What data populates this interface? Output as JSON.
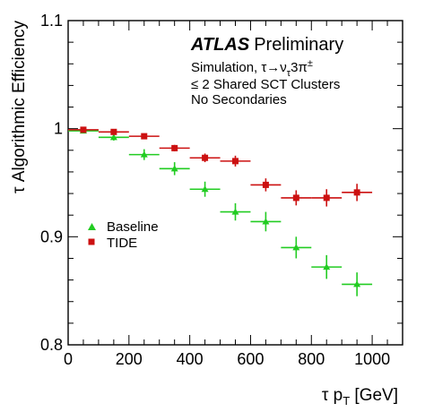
{
  "chart_data": {
    "type": "scatter",
    "xlabel": "τ  p_T [GeV]",
    "ylabel": "τ  Algorithmic Efficiency",
    "xlim": [
      0,
      1100
    ],
    "ylim": [
      0.8,
      1.1
    ],
    "x_ticks": [
      "0",
      "200",
      "400",
      "600",
      "800",
      "1000"
    ],
    "y_ticks": [
      "0.8",
      "0.9",
      "1",
      "1.1"
    ],
    "grid": false,
    "legend_position": "left-middle",
    "annotations": {
      "experiment": "ATLAS",
      "status": "Preliminary",
      "line1": "Simulation, τ→ν",
      "line1_sub": "τ",
      "line1_tail": "3π",
      "line1_sup": "±",
      "line2": "≤ 2 Shared SCT Clusters",
      "line3": "No Secondaries"
    },
    "series": [
      {
        "name": "Baseline",
        "color": "#22cc22",
        "marker": "triangle",
        "points": [
          {
            "x": 50,
            "x_err": 50,
            "y": 0.998,
            "y_err": 0.002
          },
          {
            "x": 150,
            "x_err": 50,
            "y": 0.992,
            "y_err": 0.003
          },
          {
            "x": 250,
            "x_err": 50,
            "y": 0.976,
            "y_err": 0.005
          },
          {
            "x": 350,
            "x_err": 50,
            "y": 0.963,
            "y_err": 0.006
          },
          {
            "x": 450,
            "x_err": 50,
            "y": 0.944,
            "y_err": 0.007
          },
          {
            "x": 550,
            "x_err": 50,
            "y": 0.923,
            "y_err": 0.008
          },
          {
            "x": 650,
            "x_err": 50,
            "y": 0.914,
            "y_err": 0.009
          },
          {
            "x": 750,
            "x_err": 50,
            "y": 0.89,
            "y_err": 0.01
          },
          {
            "x": 850,
            "x_err": 50,
            "y": 0.872,
            "y_err": 0.011
          },
          {
            "x": 950,
            "x_err": 50,
            "y": 0.856,
            "y_err": 0.011
          }
        ]
      },
      {
        "name": "TIDE",
        "color": "#cc1111",
        "marker": "square",
        "points": [
          {
            "x": 50,
            "x_err": 50,
            "y": 0.999,
            "y_err": 0.002
          },
          {
            "x": 150,
            "x_err": 50,
            "y": 0.997,
            "y_err": 0.002
          },
          {
            "x": 250,
            "x_err": 50,
            "y": 0.993,
            "y_err": 0.002
          },
          {
            "x": 350,
            "x_err": 50,
            "y": 0.982,
            "y_err": 0.003
          },
          {
            "x": 450,
            "x_err": 50,
            "y": 0.973,
            "y_err": 0.004
          },
          {
            "x": 550,
            "x_err": 50,
            "y": 0.97,
            "y_err": 0.005
          },
          {
            "x": 650,
            "x_err": 50,
            "y": 0.948,
            "y_err": 0.006
          },
          {
            "x": 750,
            "x_err": 50,
            "y": 0.936,
            "y_err": 0.007
          },
          {
            "x": 850,
            "x_err": 50,
            "y": 0.936,
            "y_err": 0.008
          },
          {
            "x": 950,
            "x_err": 50,
            "y": 0.941,
            "y_err": 0.008
          }
        ]
      }
    ]
  }
}
